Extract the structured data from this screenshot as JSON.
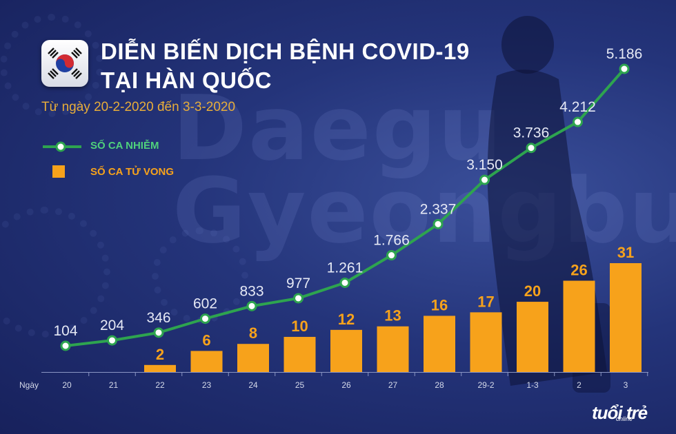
{
  "header": {
    "title_line1": "DIỄN BIẾN DỊCH BỆNH COVID-19",
    "title_line2": "TẠI HÀN QUỐC",
    "subtitle": "Từ ngày 20-2-2020 đến 3-3-2020"
  },
  "legend": {
    "cases_label": "SỐ CA NHIỄM",
    "deaths_label": "SỐ CA TỬ VONG"
  },
  "background_text": {
    "line1": "Daegu",
    "line2": "Gyeongbu"
  },
  "brand": {
    "name": "tuổi trẻ",
    "sub": "online"
  },
  "colors": {
    "line": "#2ea44f",
    "line_label": "#4fd17c",
    "bar": "#f7a21b",
    "bar_label": "#f7a21b",
    "point_label": "#e6e9f5",
    "tick": "#d5daea"
  },
  "chart_data": {
    "type": "bar",
    "title": "DIỄN BIẾN DỊCH BỆNH COVID-19 TẠI HÀN QUỐC",
    "xlabel": "Ngày",
    "ylabel": "",
    "categories": [
      "20",
      "21",
      "22",
      "23",
      "24",
      "25",
      "26",
      "27",
      "28",
      "29-2",
      "1-3",
      "2",
      "3"
    ],
    "series": [
      {
        "name": "SỐ CA NHIỄM",
        "type": "line",
        "values": [
          104,
          204,
          346,
          602,
          833,
          977,
          1261,
          1766,
          2337,
          3150,
          3736,
          4212,
          5186
        ],
        "labels": [
          "104",
          "204",
          "346",
          "602",
          "833",
          "977",
          "1.261",
          "1.766",
          "2.337",
          "3.150",
          "3.736",
          "4.212",
          "5.186"
        ]
      },
      {
        "name": "SỐ CA TỬ VONG",
        "type": "bar",
        "values": [
          null,
          null,
          2,
          6,
          8,
          10,
          12,
          13,
          16,
          17,
          20,
          26,
          31
        ],
        "labels": [
          "",
          "",
          "2",
          "6",
          "8",
          "10",
          "12",
          "13",
          "16",
          "17",
          "20",
          "26",
          "31"
        ]
      }
    ],
    "ylim_cases": [
      0,
      5500
    ],
    "ylim_deaths": [
      0,
      35
    ]
  }
}
